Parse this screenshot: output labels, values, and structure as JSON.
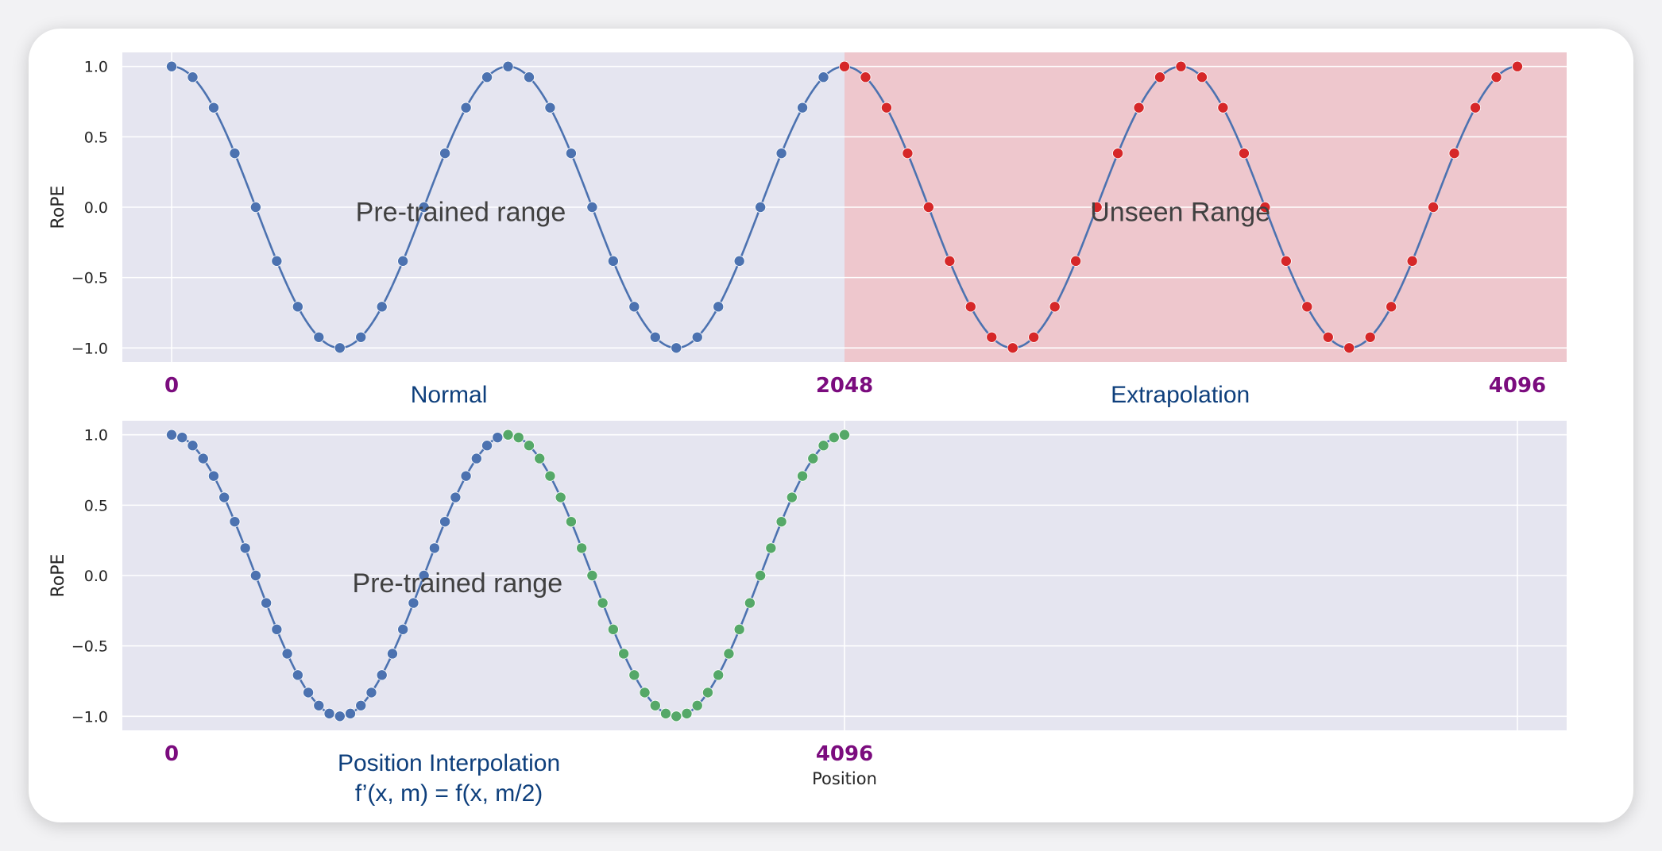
{
  "colors": {
    "plot_bg": "#e5e5f0",
    "grid": "#ffffff",
    "line": "#4c72b0",
    "pre_trained_points": "#4c72b0",
    "extrapolated_points": "#d62728",
    "interpolated_points": "#55a868",
    "unseen_shade": "#f4b4b8",
    "position_marker_text": "#7b0c7e",
    "caption_text": "#0e3f7c"
  },
  "chart_data": [
    {
      "type": "line",
      "panel": "top",
      "ylabel": "RoPE",
      "xlabel": "",
      "ylim": [
        -1.1,
        1.1
      ],
      "yticks": [
        1.0,
        0.5,
        0.0,
        -0.5,
        -1.0
      ],
      "ytick_labels": [
        "1.0",
        "0.5",
        "0.0",
        "−0.5",
        "−1.0"
      ],
      "xlim": [
        -150,
        4246
      ],
      "grid": true,
      "series": [
        {
          "style": "line",
          "function": "cos(2π·x/1024)",
          "x_range": [
            0,
            4096
          ],
          "role": "curve"
        },
        {
          "style": "scatter",
          "role": "pre-trained",
          "x_start": 0,
          "x_step": 64,
          "x_end": 1984
        },
        {
          "style": "scatter",
          "role": "extrapolated",
          "x_start": 2048,
          "x_step": 64,
          "x_end": 4096
        }
      ],
      "shaded_region": {
        "x_from": 2048,
        "x_to": 4246,
        "label": "Unseen Range"
      },
      "annotations": [
        {
          "text": "Pre-trained range",
          "x": 880,
          "y": -0.03
        },
        {
          "text": "Unseen Range",
          "x": 3070,
          "y": -0.03
        }
      ],
      "position_markers": [
        {
          "x": 0,
          "label": "0"
        },
        {
          "x": 2048,
          "label": "2048"
        },
        {
          "x": 4096,
          "label": "4096"
        }
      ],
      "captions": [
        {
          "x": 844,
          "lines": [
            "Normal"
          ]
        },
        {
          "x": 3070,
          "lines": [
            "Extrapolation"
          ]
        }
      ]
    },
    {
      "type": "line",
      "panel": "bottom",
      "ylabel": "RoPE",
      "xlabel": "Position",
      "ylim": [
        -1.1,
        1.1
      ],
      "yticks": [
        1.0,
        0.5,
        0.0,
        -0.5,
        -1.0
      ],
      "ytick_labels": [
        "1.0",
        "0.5",
        "0.0",
        "−0.5",
        "−1.0"
      ],
      "xlim": [
        -150,
        4246
      ],
      "grid": true,
      "xgrid_at": [
        2048,
        4096
      ],
      "series": [
        {
          "style": "line",
          "function": "cos(2π·x/1024)",
          "x_range": [
            0,
            2048
          ],
          "role": "curve"
        },
        {
          "style": "scatter",
          "role": "original",
          "x_start": 0,
          "x_step": 32,
          "x_end": 992
        },
        {
          "style": "scatter",
          "role": "interpolated",
          "x_start": 1024,
          "x_step": 32,
          "x_end": 2048
        }
      ],
      "annotations": [
        {
          "text": "Pre-trained range",
          "x": 870,
          "y": -0.05
        }
      ],
      "position_markers": [
        {
          "x": 0,
          "label": "0"
        },
        {
          "x": 2048,
          "label": "4096"
        }
      ],
      "captions": [
        {
          "x": 844,
          "lines": [
            "Position Interpolation",
            "f’(x, m) = f(x, m/2)"
          ]
        }
      ]
    }
  ]
}
